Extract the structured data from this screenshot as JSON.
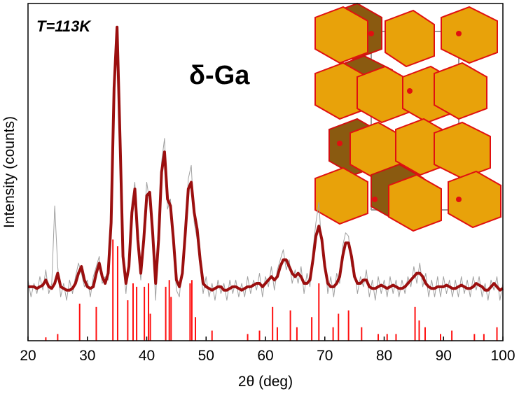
{
  "chart_data": {
    "type": "line",
    "annotations": [
      "T=113K",
      "δ-Ga"
    ],
    "x_label": "2θ (deg)",
    "y_label": "Intensity (counts)",
    "xlim": [
      20,
      100
    ],
    "xticks": [
      20,
      30,
      40,
      50,
      60,
      70,
      80,
      90,
      100
    ],
    "ylim": [
      0,
      100
    ],
    "x": [
      20,
      20.5,
      21,
      21.5,
      22,
      22.5,
      23,
      23.5,
      24,
      24.5,
      25,
      25.5,
      26,
      26.5,
      27,
      27.5,
      28,
      28.5,
      29,
      29.5,
      30,
      30.5,
      31,
      31.5,
      32,
      32.5,
      33,
      33.5,
      34,
      34.5,
      35,
      35.5,
      36,
      36.5,
      37,
      37.5,
      38,
      38.5,
      39,
      39.5,
      40,
      40.5,
      41,
      41.5,
      42,
      42.5,
      43,
      43.5,
      44,
      44.5,
      45,
      45.5,
      46,
      46.5,
      47,
      47.5,
      48,
      48.5,
      49,
      49.5,
      50,
      50.5,
      51,
      51.5,
      52,
      52.5,
      53,
      53.5,
      54,
      54.5,
      55,
      55.5,
      56,
      56.5,
      57,
      57.5,
      58,
      58.5,
      59,
      59.5,
      60,
      60.5,
      61,
      61.5,
      62,
      62.5,
      63,
      63.5,
      64,
      64.5,
      65,
      65.5,
      66,
      66.5,
      67,
      67.5,
      68,
      68.5,
      69,
      69.5,
      70,
      70.5,
      71,
      71.5,
      72,
      72.5,
      73,
      73.5,
      74,
      74.5,
      75,
      75.5,
      76,
      76.5,
      77,
      77.5,
      78,
      78.5,
      79,
      79.5,
      80,
      80.5,
      81,
      81.5,
      82,
      82.5,
      83,
      83.5,
      84,
      84.5,
      85,
      85.5,
      86,
      86.5,
      87,
      87.5,
      88,
      88.5,
      89,
      89.5,
      90,
      90.5,
      91,
      91.5,
      92,
      92.5,
      93,
      93.5,
      94,
      94.5,
      95,
      95.5,
      96,
      96.5,
      97,
      97.5,
      98,
      98.5,
      99,
      99.5,
      100
    ],
    "series": [
      {
        "color": "#a0a0a0",
        "width": 1,
        "values": [
          18,
          13,
          17,
          14,
          19,
          15,
          21,
          14,
          17,
          40,
          22,
          13,
          17,
          12,
          18,
          14,
          19,
          23,
          20,
          16,
          18,
          13,
          19,
          22,
          25,
          17,
          19,
          18,
          38,
          78,
          92,
          57,
          23,
          14,
          25,
          41,
          47,
          27,
          18,
          33,
          47,
          41,
          29,
          12,
          33,
          53,
          60,
          39,
          42,
          27,
          15,
          13,
          23,
          30,
          48,
          52,
          35,
          30,
          22,
          14,
          19,
          13,
          17,
          12,
          18,
          14,
          17,
          12,
          18,
          14,
          18,
          13,
          17,
          13,
          19,
          14,
          18,
          15,
          20,
          13,
          19,
          16,
          22,
          15,
          21,
          24,
          27,
          21,
          24,
          17,
          21,
          17,
          22,
          14,
          20,
          16,
          27,
          35,
          41,
          27,
          24,
          14,
          19,
          13,
          20,
          17,
          28,
          32,
          31,
          22,
          21,
          14,
          19,
          16,
          21,
          13,
          18,
          12,
          19,
          14,
          18,
          13,
          19,
          14,
          18,
          13,
          18,
          14,
          19,
          16,
          22,
          17,
          23,
          16,
          20,
          13,
          18,
          13,
          19,
          13,
          19,
          14,
          18,
          13,
          18,
          13,
          19,
          14,
          18,
          13,
          19,
          15,
          19,
          13,
          17,
          12,
          18,
          15,
          19,
          12,
          17
        ]
      },
      {
        "color": "#9b0f0f",
        "width": 4,
        "values": [
          16,
          16,
          16,
          15.5,
          16,
          16.5,
          18,
          16,
          15.5,
          17,
          20,
          16,
          15.5,
          15,
          15,
          15.5,
          17,
          20,
          22,
          18,
          16,
          15.5,
          16,
          20,
          23,
          19,
          17,
          20,
          35,
          75,
          93,
          60,
          25,
          17,
          22,
          38,
          45,
          30,
          20,
          30,
          43,
          44,
          32,
          17,
          30,
          50,
          56,
          42,
          40,
          30,
          18,
          16,
          20,
          32,
          45,
          47,
          38,
          33,
          24,
          17,
          16,
          15.5,
          15,
          15.5,
          16,
          16,
          15,
          15,
          15.5,
          16,
          16,
          15.5,
          15,
          15.5,
          16,
          16,
          16.5,
          17,
          17,
          16,
          17,
          18,
          19,
          18,
          19,
          22,
          24,
          24,
          22,
          20,
          19,
          20,
          19,
          17,
          17,
          18,
          24,
          31,
          34,
          30,
          22,
          17,
          16,
          16,
          17,
          19,
          25,
          29,
          29,
          25,
          19,
          17,
          17,
          18,
          18,
          16,
          15.5,
          15.5,
          16,
          16.5,
          16,
          15.5,
          16,
          16.5,
          16,
          15.5,
          15.5,
          16,
          17,
          18,
          19,
          20,
          20,
          19,
          17,
          16,
          15.5,
          15.5,
          16,
          16,
          16,
          16.5,
          16,
          15.5,
          15.5,
          16,
          16.5,
          16,
          15.5,
          15.5,
          16,
          17,
          16.5,
          16,
          15,
          15,
          16,
          17,
          16,
          15,
          15.5
        ]
      }
    ],
    "reflections": {
      "color": "#ff1010",
      "x": [
        23,
        25,
        28.7,
        31.5,
        34.3,
        35.1,
        36.8,
        37.7,
        38.3,
        39.6,
        40.3,
        40.6,
        43.2,
        43.8,
        44.1,
        47.3,
        47.6,
        48.2,
        51,
        57,
        59,
        61.2,
        62,
        64.2,
        65.3,
        67.8,
        69,
        71.4,
        72.3,
        74,
        76.2,
        79,
        80.5,
        82,
        85.2,
        85.9,
        86.9,
        89.5,
        91.4,
        95.2,
        96.8,
        99
      ],
      "values": [
        1,
        2,
        11,
        10,
        30,
        28,
        12,
        17,
        16,
        16,
        17,
        8,
        16,
        18,
        13,
        17,
        18,
        7,
        3,
        2,
        3,
        10,
        4,
        9,
        4,
        7,
        17,
        4,
        8,
        9,
        4,
        2,
        2,
        2,
        10,
        6,
        4,
        2,
        3,
        2,
        2,
        4
      ]
    }
  }
}
